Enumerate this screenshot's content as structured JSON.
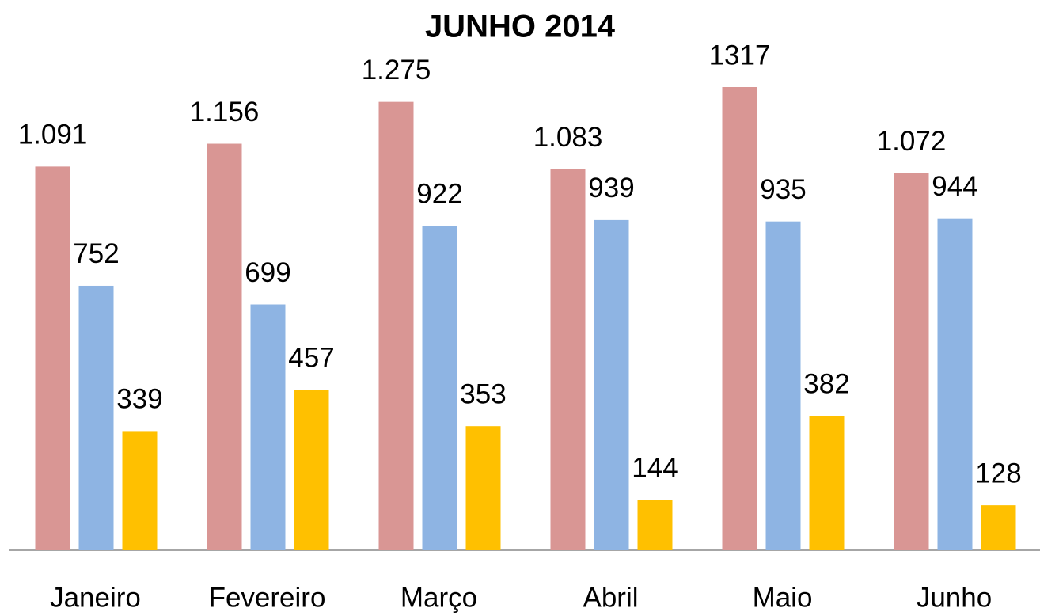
{
  "chart_data": {
    "type": "bar",
    "title": "JUNHO 2014",
    "categories": [
      "Janeiro",
      "Fevereiro",
      "Março",
      "Abril",
      "Maio",
      "Junho"
    ],
    "series": [
      {
        "color": "#d99694",
        "values": [
          1091,
          1156,
          1275,
          1083,
          1317,
          1072
        ],
        "value_labels": [
          "1.091",
          "1.156",
          "1.275",
          "1.083",
          "1317",
          "1.072"
        ]
      },
      {
        "color": "#8eb4e3",
        "values": [
          752,
          699,
          922,
          939,
          935,
          944
        ],
        "value_labels": [
          "752",
          "699",
          "922",
          "939",
          "935",
          "944"
        ]
      },
      {
        "color": "#ffc000",
        "values": [
          339,
          457,
          353,
          144,
          382,
          128
        ],
        "value_labels": [
          "339",
          "457",
          "353",
          "144",
          "382",
          "128"
        ]
      }
    ]
  }
}
